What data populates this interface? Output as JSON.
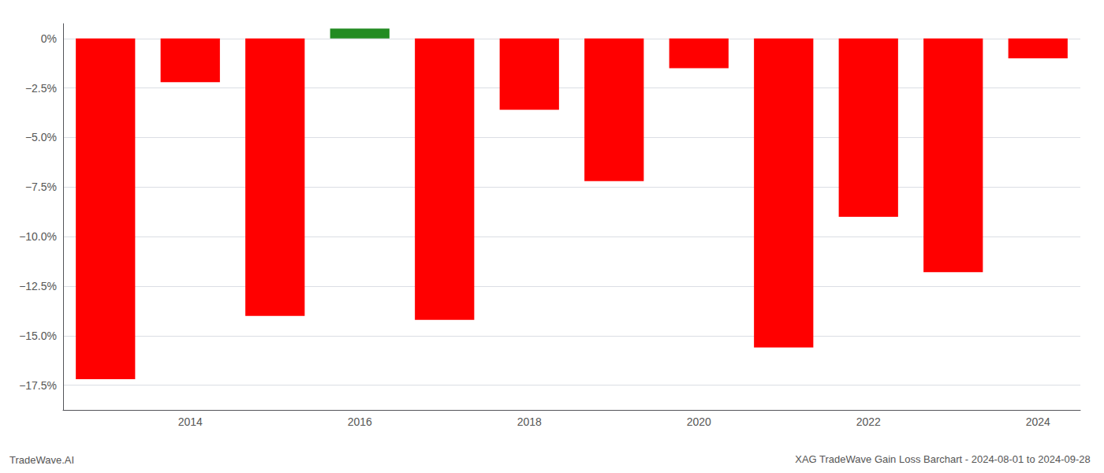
{
  "chart_data": {
    "type": "bar",
    "title": "XAG TradeWave Gain Loss Barchart - 2024-08-01 to 2024-09-28",
    "annotations": [
      "TradeWave.AI"
    ],
    "categories": [
      null,
      "2014",
      null,
      "2016",
      null,
      "2018",
      null,
      "2020",
      null,
      "2022",
      null,
      "2024"
    ],
    "values": [
      -17.2,
      -2.2,
      -14.0,
      0.5,
      -14.2,
      -3.6,
      -7.2,
      -1.5,
      -15.6,
      -9.0,
      -11.8,
      -1.0
    ],
    "colors": [
      "#ff0000",
      "#ff0000",
      "#ff0000",
      "#228B22",
      "#ff0000",
      "#ff0000",
      "#ff0000",
      "#ff0000",
      "#ff0000",
      "#ff0000",
      "#ff0000",
      "#ff0000"
    ],
    "ylim": [
      -18.75,
      0.75
    ],
    "yticks": [
      {
        "value": 0.0,
        "label": "0%"
      },
      {
        "value": -2.5,
        "label": "−2.5%"
      },
      {
        "value": -5.0,
        "label": "−5.0%"
      },
      {
        "value": -7.5,
        "label": "−7.5%"
      },
      {
        "value": -10.0,
        "label": "−10.0%"
      },
      {
        "value": -12.5,
        "label": "−12.5%"
      },
      {
        "value": -15.0,
        "label": "−15.0%"
      },
      {
        "value": -17.5,
        "label": "−17.5%"
      }
    ],
    "grid": true
  }
}
